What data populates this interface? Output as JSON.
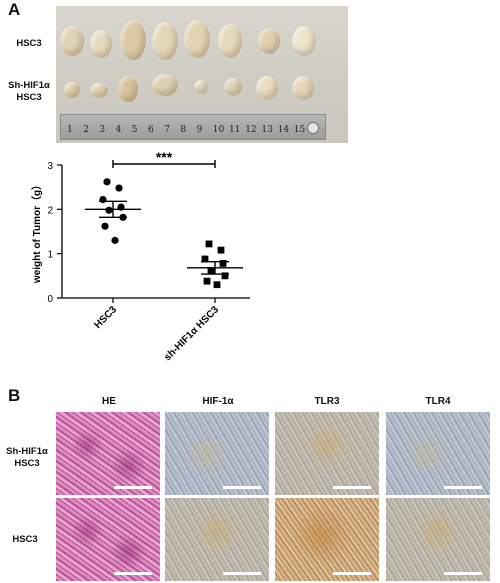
{
  "panel_a": {
    "letter": "A",
    "row_top_label": "HSC3",
    "row_bottom_label_1": "Sh-HIF1α",
    "row_bottom_label_2": "HSC3",
    "ruler_numbers": [
      "1",
      "2",
      "3",
      "4",
      "5",
      "6",
      "7",
      "8",
      "9",
      "10",
      "11",
      "12",
      "13",
      "14",
      "15"
    ]
  },
  "chart_data": {
    "type": "scatter",
    "ylabel": "weight of Tumor（g）",
    "xlabel": "",
    "categories": [
      "HSC3",
      "sh-HIF1α HSC3"
    ],
    "ylim": [
      0,
      3
    ],
    "yticks": [
      "0",
      "1",
      "2",
      "3"
    ],
    "significance": "***",
    "series": [
      {
        "marker": "circle",
        "category": "HSC3",
        "values": [
          2.62,
          2.48,
          2.22,
          2.05,
          1.98,
          1.82,
          1.62,
          1.3
        ],
        "mean": 2.0,
        "sem_upper": 2.18,
        "sem_lower": 1.82
      },
      {
        "marker": "square",
        "category": "sh-HIF1α HSC3",
        "values": [
          1.22,
          1.08,
          0.88,
          0.78,
          0.62,
          0.5,
          0.38,
          0.3
        ],
        "mean": 0.68,
        "sem_upper": 0.82,
        "sem_lower": 0.54
      }
    ]
  },
  "panel_b": {
    "letter": "B",
    "columns": [
      "HE",
      "HIF-1α",
      "TLR3",
      "TLR4"
    ],
    "row_top_label_1": "Sh-HIF1α",
    "row_top_label_2": "HSC3",
    "row_bottom_label": "HSC3"
  }
}
